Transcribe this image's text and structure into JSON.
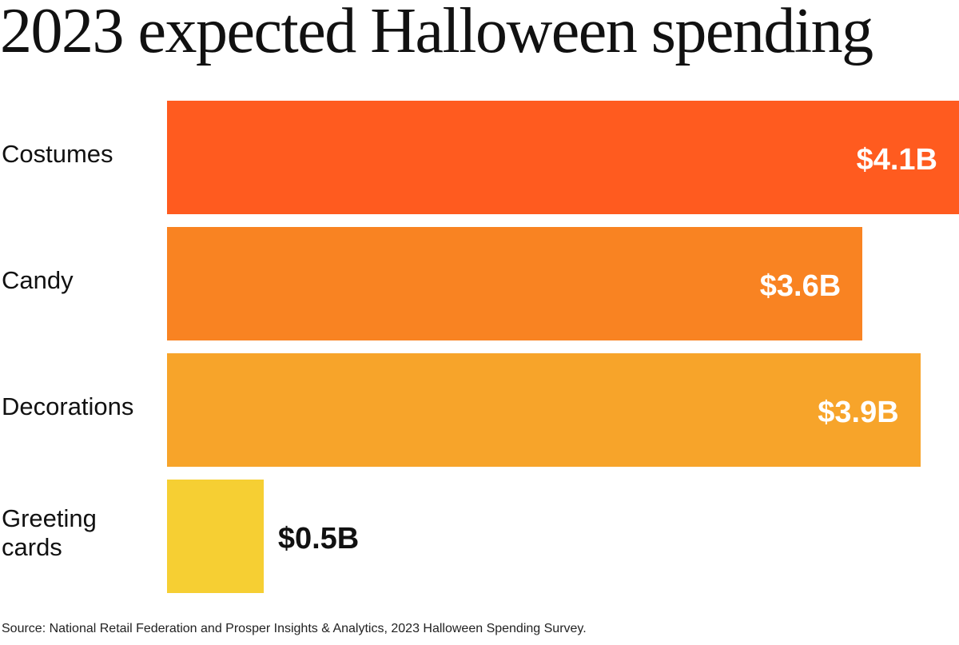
{
  "chart_data": {
    "type": "bar",
    "orientation": "horizontal",
    "title": "2023 expected Halloween spending",
    "categories": [
      "Costumes",
      "Candy",
      "Decorations",
      "Greeting cards"
    ],
    "category_lines": [
      [
        "Costumes"
      ],
      [
        "Candy"
      ],
      [
        "Decorations"
      ],
      [
        "Greeting",
        "cards"
      ]
    ],
    "values": [
      4.1,
      3.6,
      3.9,
      0.5
    ],
    "value_labels": [
      "$4.1B",
      "$3.6B",
      "$3.9B",
      "$0.5B"
    ],
    "unit": "billion USD",
    "colors": [
      "#FF5B1F",
      "#F98322",
      "#F7A42A",
      "#F6CF33"
    ],
    "xlim": [
      0,
      4.1
    ],
    "grid": false,
    "legend": "none",
    "source": "Source: National Retail Federation and Prosper Insights & Analytics, 2023 Halloween Spending Survey."
  }
}
